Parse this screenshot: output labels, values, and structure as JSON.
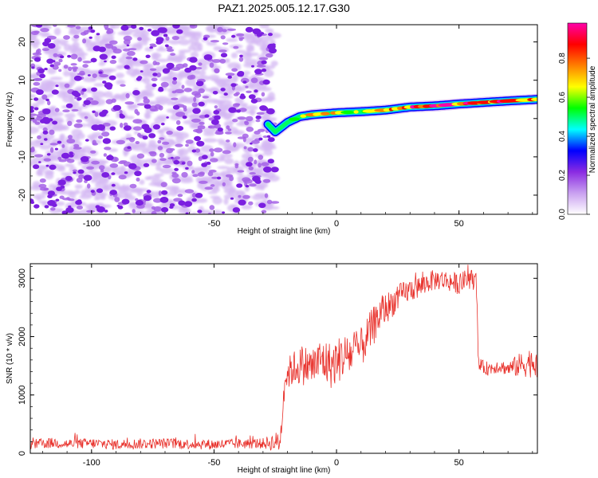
{
  "title": "PAZ1.2025.005.12.17.G30",
  "colors": {
    "spectrogram_noise": "#8a2be2",
    "snr_line": "#e8302a",
    "frame": "#000000"
  },
  "chart_data": [
    {
      "type": "heatmap",
      "name_in_image": "spectrogram",
      "xlabel": "Height of straight line (km)",
      "ylabel": "Frequency (Hz)",
      "xlim": [
        -125,
        82
      ],
      "ylim": [
        -25,
        24.5
      ],
      "xticks": [
        -100,
        -50,
        0,
        50
      ],
      "xtick_labels": [
        "-100",
        "-50",
        "0",
        "50"
      ],
      "yticks": [
        20,
        10,
        0,
        -10,
        -20
      ],
      "ytick_labels": [
        "20",
        "10",
        "0",
        "-10",
        "-20"
      ],
      "noise_region_x": [
        -125,
        -25
      ],
      "ridge": {
        "description_points_x": [
          -28,
          -25,
          -20,
          -15,
          -10,
          0,
          10,
          20,
          30,
          40,
          50,
          60,
          70,
          82
        ],
        "frequency_hz": [
          -1.5,
          -3.5,
          -1,
          0.5,
          1,
          1.5,
          1.8,
          2.2,
          3,
          3.3,
          3.8,
          4.2,
          4.6,
          5
        ],
        "peak_amplitude": [
          0.3,
          0.45,
          0.5,
          0.55,
          0.8,
          0.7,
          0.6,
          0.75,
          0.85,
          0.9,
          0.9,
          0.85,
          0.95,
          0.8
        ]
      },
      "colorbar": {
        "label": "Normalized spectral amplitude",
        "range": [
          0.0,
          0.98
        ],
        "ticks": [
          0.0,
          0.2,
          0.4,
          0.6,
          0.8
        ],
        "tick_labels": [
          "0.0",
          "0.2",
          "0.4",
          "0.6",
          "0.8"
        ],
        "colormap": [
          "#ffffff",
          "#c9a0f0",
          "#8a2be2",
          "#0000ff",
          "#00ffff",
          "#00ff00",
          "#ffff00",
          "#ff7f00",
          "#ff0000",
          "#ff00aa"
        ]
      }
    },
    {
      "type": "line",
      "name_in_image": "snr",
      "xlabel": "Height of straight line (km)",
      "ylabel": "SNR (10 * v/v)",
      "xlim": [
        -125,
        82
      ],
      "ylim": [
        0,
        3250
      ],
      "xticks": [
        -100,
        -50,
        0,
        50
      ],
      "xtick_labels": [
        "-100",
        "-50",
        "0",
        "50"
      ],
      "yticks": [
        0,
        1000,
        2000,
        3000
      ],
      "ytick_labels": [
        "0",
        "1000",
        "2000",
        "3000"
      ],
      "series": [
        {
          "color": "#e8302a",
          "x": [
            -125,
            -115,
            -110,
            -100,
            -90,
            -80,
            -70,
            -60,
            -50,
            -40,
            -30,
            -23,
            -21,
            -18,
            -14,
            -10,
            -6,
            -2,
            2,
            6,
            10,
            14,
            18,
            22,
            26,
            30,
            34,
            38,
            42,
            46,
            50,
            54,
            57,
            58,
            62,
            66,
            70,
            74,
            78,
            82
          ],
          "y": [
            150,
            180,
            160,
            170,
            150,
            165,
            170,
            160,
            150,
            165,
            170,
            200,
            1300,
            1450,
            1520,
            1480,
            1600,
            1500,
            1650,
            1700,
            1800,
            2100,
            2400,
            2550,
            2700,
            2800,
            2850,
            2950,
            2980,
            2950,
            2900,
            3000,
            2950,
            1500,
            1450,
            1500,
            1450,
            1500,
            1550,
            1600
          ],
          "noise_amplitude": [
            90,
            90,
            90,
            90,
            90,
            90,
            90,
            90,
            90,
            90,
            90,
            200,
            250,
            300,
            350,
            350,
            400,
            400,
            400,
            400,
            350,
            350,
            300,
            250,
            220,
            200,
            200,
            180,
            180,
            180,
            180,
            180,
            160,
            120,
            120,
            120,
            120,
            200,
            250,
            300
          ]
        }
      ]
    }
  ]
}
